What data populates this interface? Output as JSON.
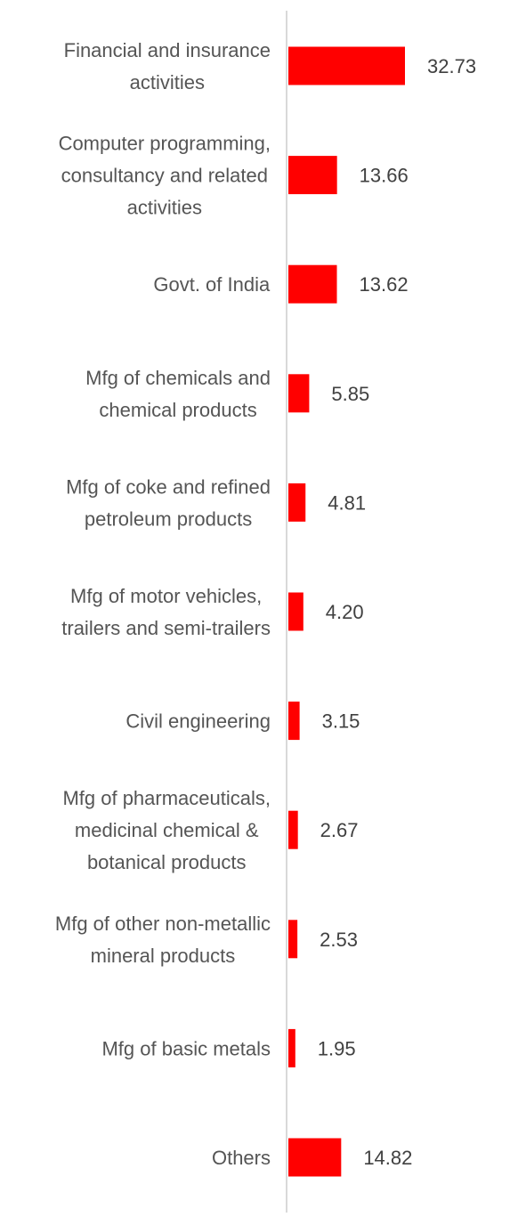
{
  "chart_data": {
    "type": "bar",
    "orientation": "horizontal",
    "categories": [
      [
        "Financial and insurance",
        "activities"
      ],
      [
        "Computer programming,",
        "consultancy and related",
        "activities"
      ],
      [
        "Govt. of India"
      ],
      [
        "Mfg of chemicals and",
        "chemical products"
      ],
      [
        "Mfg of coke and refined",
        "petroleum products"
      ],
      [
        "Mfg of motor vehicles,",
        "trailers and semi-trailers"
      ],
      [
        "Civil engineering"
      ],
      [
        "Mfg of pharmaceuticals,",
        "medicinal chemical &",
        "botanical products"
      ],
      [
        "Mfg of other non-metallic",
        "mineral products"
      ],
      [
        "Mfg of basic metals"
      ],
      [
        "Others"
      ]
    ],
    "values": [
      32.73,
      13.66,
      13.62,
      5.85,
      4.81,
      4.2,
      3.15,
      2.67,
      2.53,
      1.95,
      14.82
    ],
    "value_labels": [
      "32.73",
      "13.66",
      "13.62",
      "5.85",
      "4.81",
      "4.20",
      "3.15",
      "2.67",
      "2.53",
      "1.95",
      "14.82"
    ],
    "bar_color": "#ff0000",
    "axis_color": "#d9d9d9",
    "grid": false,
    "legend": "none"
  }
}
